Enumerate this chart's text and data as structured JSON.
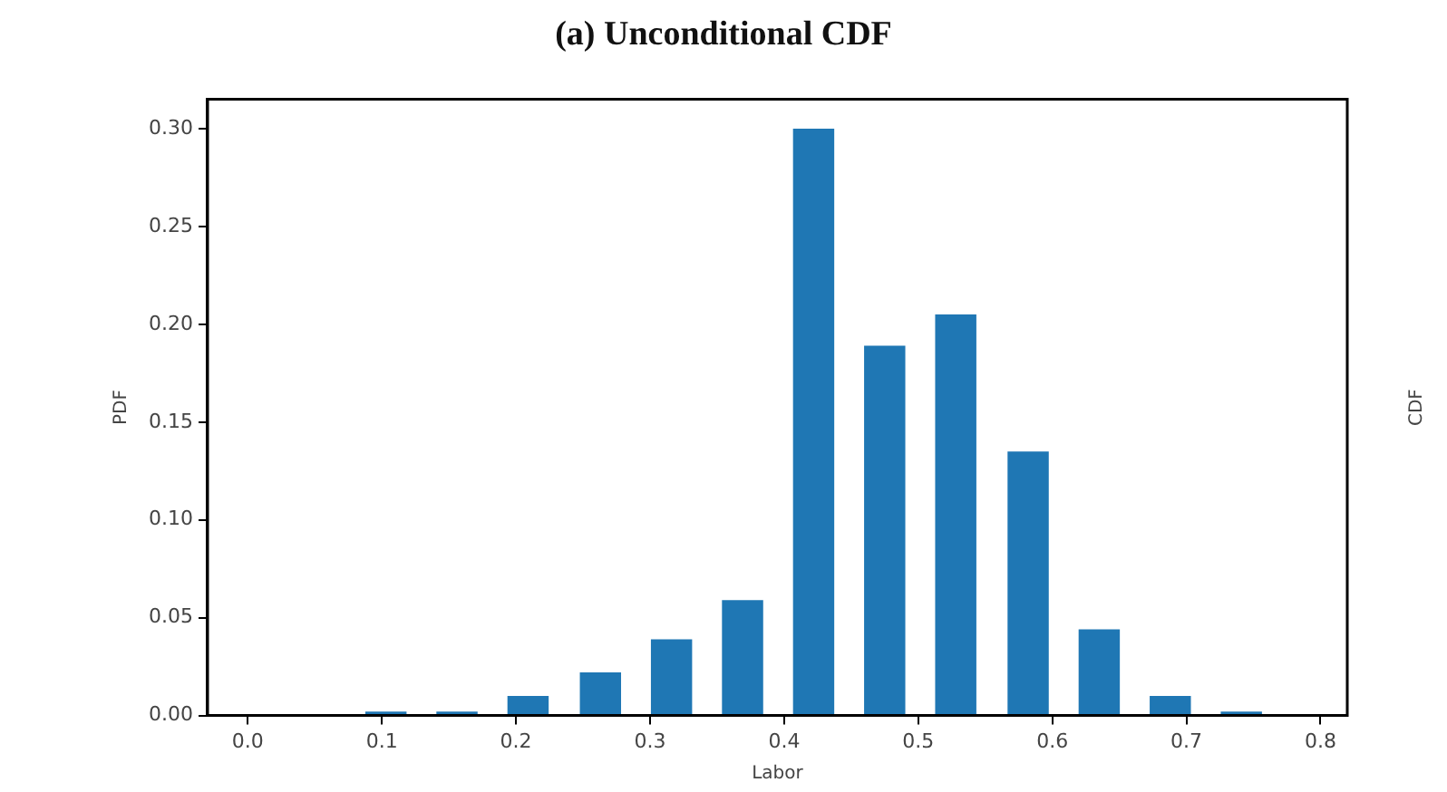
{
  "chart_data": {
    "type": "bar",
    "title": "(a) Unconditional CDF",
    "xlabel": "Labor",
    "ylabel": "PDF",
    "annotations": [
      "CDF"
    ],
    "x": [
      0.103,
      0.156,
      0.209,
      0.263,
      0.316,
      0.369,
      0.422,
      0.475,
      0.528,
      0.582,
      0.635,
      0.688,
      0.741
    ],
    "values": [
      0.002,
      0.002,
      0.01,
      0.022,
      0.039,
      0.059,
      0.3,
      0.189,
      0.205,
      0.135,
      0.044,
      0.01,
      0.002
    ],
    "color": "#1f77b4",
    "xlim": [
      -0.03,
      0.82
    ],
    "xticks": [
      {
        "value": 0,
        "label": "0.0"
      },
      0.1,
      0.2,
      0.3,
      0.4,
      0.5,
      0.6,
      0.7,
      0.8
    ],
    "ylim": [
      0,
      0.315
    ],
    "yticks": [
      {
        "value": 0,
        "label": "0.00"
      },
      0.05,
      {
        "value": 0.1,
        "label": "0.10"
      },
      0.15,
      {
        "value": 0.2,
        "label": "0.20"
      },
      0.25,
      {
        "value": 0.3,
        "label": "0.30"
      }
    ],
    "grid": false,
    "legend": false
  }
}
